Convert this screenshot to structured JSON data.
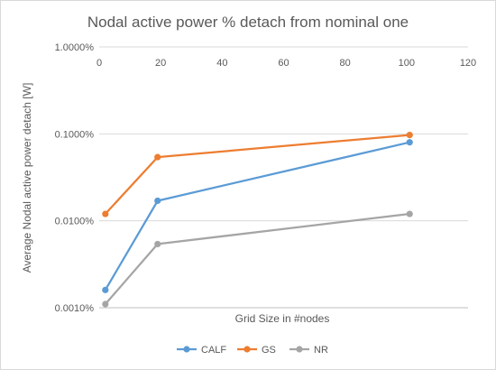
{
  "chart_data": {
    "type": "line",
    "title": "Nodal active power % detach from nominal one",
    "xlabel": "Grid Size in #nodes",
    "ylabel": "Average Nodal active power detach [W]",
    "xlim": [
      0,
      120
    ],
    "x_ticks": [
      "0",
      "20",
      "40",
      "60",
      "80",
      "100",
      "120"
    ],
    "y_scale": "log",
    "ylim": [
      0.001,
      1.0
    ],
    "y_ticks": [
      "1.0000%",
      "0.1000%",
      "0.0100%",
      "0.0010%"
    ],
    "grid": "horizontal major gridlines",
    "legend_position": "bottom",
    "series": [
      {
        "name": "CALF",
        "color": "#5b9bd5",
        "x": [
          2,
          19,
          101
        ],
        "y": [
          0.0016,
          0.017,
          0.08
        ]
      },
      {
        "name": "GS",
        "color": "#ed7d31",
        "x": [
          2,
          19,
          101
        ],
        "y": [
          0.012,
          0.054,
          0.097
        ]
      },
      {
        "name": "NR",
        "color": "#a5a5a5",
        "x": [
          2,
          19,
          101
        ],
        "y": [
          0.0011,
          0.0054,
          0.012
        ]
      }
    ]
  }
}
